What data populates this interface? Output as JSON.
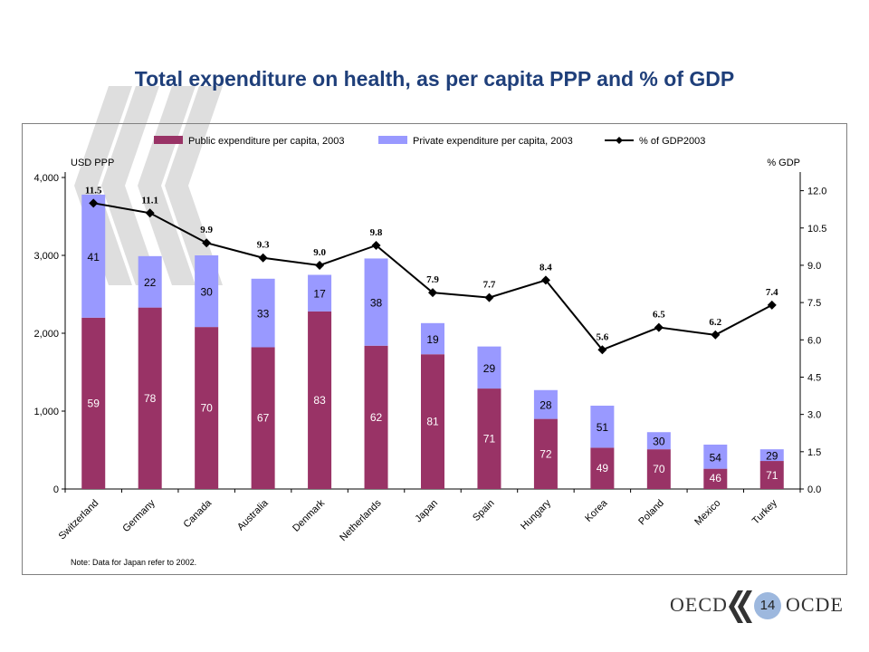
{
  "title": "Total expenditure on health, as per capita PPP and % of GDP",
  "footer": {
    "left_text": "OECD",
    "right_text": "OCDE",
    "page_number": "14"
  },
  "colors": {
    "title": "#1f3f7a",
    "public": "#993366",
    "private": "#9999ff",
    "line": "#000000",
    "deco": "#d9d9d9"
  },
  "chart_data": {
    "type": "bar",
    "subtype": "stacked bar with line on secondary axis",
    "categories": [
      "Switzerland",
      "Germany",
      "Canada",
      "Australia",
      "Denmark",
      "Netherlands",
      "Japan",
      "Spain",
      "Hungary",
      "Korea",
      "Poland",
      "Mexico",
      "Turkey"
    ],
    "series": [
      {
        "name": "Public expenditure per capita, 2003",
        "kind": "bar",
        "axis": "left",
        "values": [
          2200,
          2330,
          2080,
          1820,
          2280,
          1840,
          1730,
          1290,
          900,
          530,
          510,
          260,
          360
        ],
        "labels": [
          "59",
          "78",
          "70",
          "67",
          "83",
          "62",
          "81",
          "71",
          "72",
          "49",
          "70",
          "46",
          "71"
        ]
      },
      {
        "name": "Private expenditure per capita, 2003",
        "kind": "bar",
        "axis": "left",
        "values": [
          1580,
          660,
          920,
          880,
          470,
          1120,
          400,
          540,
          370,
          540,
          220,
          310,
          150
        ],
        "labels": [
          "41",
          "22",
          "30",
          "33",
          "17",
          "38",
          "19",
          "29",
          "28",
          "51",
          "30",
          "54",
          "29"
        ]
      },
      {
        "name": "% of GDP2003",
        "kind": "line",
        "axis": "right",
        "values": [
          11.5,
          11.1,
          9.9,
          9.3,
          9.0,
          9.8,
          7.9,
          7.7,
          8.4,
          5.6,
          6.5,
          6.2,
          7.4
        ],
        "labels": [
          "11.5",
          "11.1",
          "9.9",
          "9.3",
          "9.0",
          "9.8",
          "7.9",
          "7.7",
          "8.4",
          "5.6",
          "6.5",
          "6.2",
          "7.4"
        ]
      }
    ],
    "ylabel_left": "USD PPP",
    "ylabel_right": "% GDP",
    "ylim_left": [
      0,
      4000
    ],
    "yticks_left": [
      "0",
      "1,000",
      "2,000",
      "3,000",
      "4,000"
    ],
    "ylim_right": [
      0,
      12.75
    ],
    "yticks_right": [
      "0.0",
      "1.5",
      "3.0",
      "4.5",
      "6.0",
      "7.5",
      "9.0",
      "10.5",
      "12.0"
    ],
    "legend_position": "top",
    "grid": false,
    "note": "Note: Data for Japan refer to 2002."
  }
}
